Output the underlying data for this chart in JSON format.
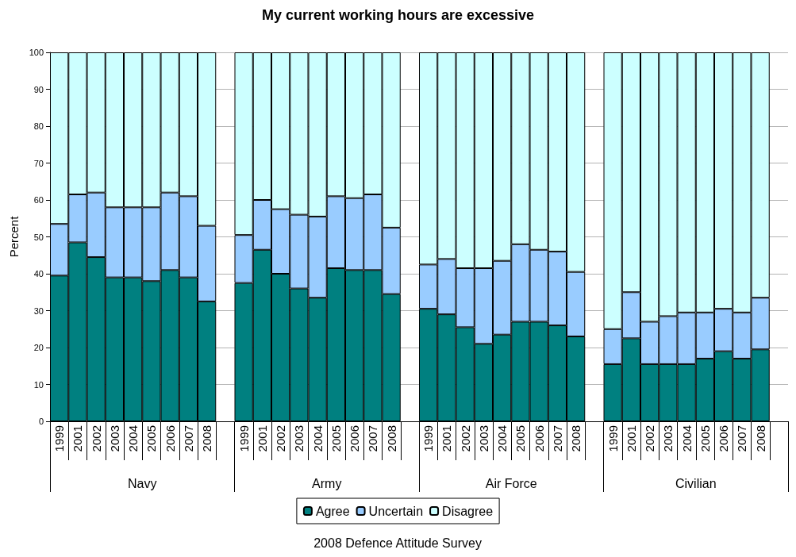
{
  "chart_data": [
    {
      "type": "bar",
      "xlabel": "Navy",
      "ylabel": "Percent",
      "annotations": [
        "My current working hours are excessive",
        "2008 Defence Attitude Survey"
      ],
      "categories": [
        "1999",
        "2001",
        "2002",
        "2003",
        "2004",
        "2005",
        "2006",
        "2007",
        "2008"
      ],
      "stacked": true,
      "ylim": [
        0,
        100
      ],
      "yticks": [
        0,
        10,
        20,
        30,
        40,
        50,
        60,
        70,
        80,
        90,
        100
      ],
      "grid": "y",
      "legend": "bottom",
      "series": [
        {
          "name": "Agree",
          "color": "#008080",
          "values": [
            39.5,
            48.5,
            44.5,
            39,
            39,
            38,
            41,
            39,
            32.5
          ]
        },
        {
          "name": "Uncertain",
          "color": "#99ccff",
          "values": [
            14,
            13,
            17.5,
            19,
            19,
            20,
            21,
            22,
            20.5
          ]
        },
        {
          "name": "Disagree",
          "color": "#ccffff",
          "values": [
            46.5,
            38.5,
            38,
            42,
            42,
            42,
            38,
            39,
            47
          ]
        }
      ]
    },
    {
      "type": "bar",
      "xlabel": "Army",
      "categories": [
        "1999",
        "2001",
        "2002",
        "2003",
        "2004",
        "2005",
        "2006",
        "2007",
        "2008"
      ],
      "stacked": true,
      "ylim": [
        0,
        100
      ],
      "yticks": [
        0,
        10,
        20,
        30,
        40,
        50,
        60,
        70,
        80,
        90,
        100
      ],
      "grid": "y",
      "tick_labels": "x",
      "series": [
        {
          "name": "Agree",
          "color": "#008080",
          "values": [
            37.5,
            46.5,
            40,
            36,
            33.5,
            41.5,
            41,
            41,
            34.5
          ]
        },
        {
          "name": "Uncertain",
          "color": "#99ccff",
          "values": [
            13,
            13.5,
            17.5,
            20,
            22,
            19.5,
            19.5,
            20.5,
            18
          ]
        },
        {
          "name": "Disagree",
          "color": "#ccffff",
          "values": [
            49.5,
            40,
            42.5,
            44,
            44.5,
            39,
            39.5,
            38.5,
            47.5
          ]
        }
      ]
    },
    {
      "type": "bar",
      "xlabel": "Air Force",
      "categories": [
        "1999",
        "2001",
        "2002",
        "2003",
        "2004",
        "2005",
        "2006",
        "2007",
        "2008"
      ],
      "stacked": true,
      "ylim": [
        0,
        100
      ],
      "yticks": [
        0,
        10,
        20,
        30,
        40,
        50,
        60,
        70,
        80,
        90,
        100
      ],
      "grid": "y",
      "tick_labels": "x",
      "series": [
        {
          "name": "Agree",
          "color": "#008080",
          "values": [
            30.5,
            29,
            25.5,
            21,
            23.5,
            27,
            27,
            26,
            23
          ]
        },
        {
          "name": "Uncertain",
          "color": "#99ccff",
          "values": [
            12,
            15,
            16,
            20.5,
            20,
            21,
            19.5,
            20,
            17.5
          ]
        },
        {
          "name": "Disagree",
          "color": "#ccffff",
          "values": [
            57.5,
            56,
            58.5,
            58.5,
            56.5,
            52,
            53.5,
            54,
            59.5
          ]
        }
      ]
    },
    {
      "type": "bar",
      "xlabel": "Civilian",
      "categories": [
        "1999",
        "2001",
        "2002",
        "2003",
        "2004",
        "2005",
        "2006",
        "2007",
        "2008"
      ],
      "stacked": true,
      "ylim": [
        0,
        100
      ],
      "yticks": [
        0,
        10,
        20,
        30,
        40,
        50,
        60,
        70,
        80,
        90,
        100
      ],
      "grid": "y",
      "tick_labels": "x",
      "series": [
        {
          "name": "Agree",
          "color": "#008080",
          "values": [
            15.5,
            22.5,
            15.5,
            15.5,
            15.5,
            17,
            19,
            17,
            19.5
          ]
        },
        {
          "name": "Uncertain",
          "color": "#99ccff",
          "values": [
            9.5,
            12.5,
            11.5,
            13,
            14,
            12.5,
            11.5,
            12.5,
            14
          ]
        },
        {
          "name": "Disagree",
          "color": "#ccffff",
          "values": [
            75,
            65,
            73,
            71.5,
            70.5,
            70.5,
            69.5,
            70.5,
            66.5
          ]
        }
      ]
    }
  ]
}
